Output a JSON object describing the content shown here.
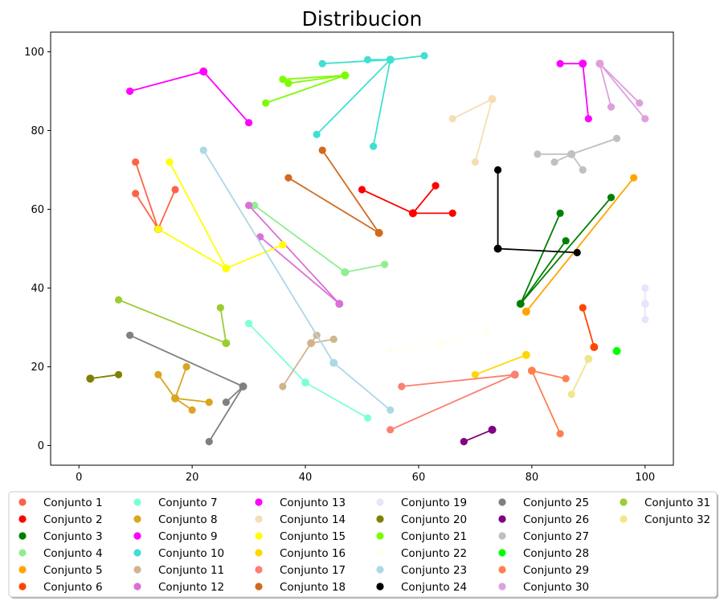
{
  "chart_data": {
    "type": "scatter",
    "title": "Distribucion",
    "xlabel": "",
    "ylabel": "",
    "xlim": [
      -5,
      105
    ],
    "ylim": [
      -5,
      105
    ],
    "xticks": [
      0,
      20,
      40,
      60,
      80,
      100
    ],
    "yticks": [
      0,
      20,
      40,
      60,
      80,
      100
    ],
    "grid": false,
    "legend_position": "bottom",
    "legend_columns": 6,
    "series": [
      {
        "name": "Conjunto 1",
        "color": "#ff6347",
        "center": [
          14,
          55
        ],
        "points": [
          [
            10,
            72
          ],
          [
            10,
            64
          ],
          [
            17,
            65
          ]
        ]
      },
      {
        "name": "Conjunto 2",
        "color": "#ff0000",
        "center": [
          59,
          59
        ],
        "points": [
          [
            50,
            65
          ],
          [
            63,
            66
          ],
          [
            66,
            59
          ]
        ]
      },
      {
        "name": "Conjunto 3",
        "color": "#008000",
        "center": [
          78,
          36
        ],
        "points": [
          [
            85,
            59
          ],
          [
            86,
            52
          ],
          [
            94,
            63
          ]
        ]
      },
      {
        "name": "Conjunto 4",
        "color": "#90ee90",
        "center": [
          47,
          44
        ],
        "points": [
          [
            31,
            61
          ],
          [
            54,
            46
          ]
        ]
      },
      {
        "name": "Conjunto 5",
        "color": "#ffa500",
        "center": [
          79,
          34
        ],
        "points": [
          [
            98,
            68
          ]
        ]
      },
      {
        "name": "Conjunto 6",
        "color": "#ff4500",
        "center": [
          91,
          25
        ],
        "points": [
          [
            89,
            35
          ]
        ]
      },
      {
        "name": "Conjunto 7",
        "color": "#7fffd4",
        "center": [
          40,
          16
        ],
        "points": [
          [
            30,
            31
          ],
          [
            51,
            7
          ]
        ]
      },
      {
        "name": "Conjunto 8",
        "color": "#daa520",
        "center": [
          17,
          12
        ],
        "points": [
          [
            14,
            18
          ],
          [
            19,
            20
          ],
          [
            20,
            9
          ],
          [
            23,
            11
          ]
        ]
      },
      {
        "name": "Conjunto 9",
        "color": "#ff00ff",
        "center": [
          22,
          95
        ],
        "points": [
          [
            9,
            90
          ],
          [
            30,
            82
          ]
        ]
      },
      {
        "name": "Conjunto 10",
        "color": "#40e0d0",
        "center": [
          55,
          98
        ],
        "points": [
          [
            42,
            79
          ],
          [
            43,
            97
          ],
          [
            51,
            98
          ],
          [
            52,
            76
          ],
          [
            61,
            99
          ]
        ]
      },
      {
        "name": "Conjunto 11",
        "color": "#d2b48c",
        "center": [
          41,
          26
        ],
        "points": [
          [
            36,
            15
          ],
          [
            42,
            28
          ],
          [
            45,
            27
          ]
        ]
      },
      {
        "name": "Conjunto 12",
        "color": "#da70d6",
        "center": [
          46,
          36
        ],
        "points": [
          [
            30,
            61
          ],
          [
            32,
            53
          ]
        ]
      },
      {
        "name": "Conjunto 13",
        "color": "#ff00ff",
        "center": [
          89,
          97
        ],
        "points": [
          [
            85,
            97
          ],
          [
            90,
            83
          ]
        ]
      },
      {
        "name": "Conjunto 14",
        "color": "#f5deb3",
        "center": [
          73,
          88
        ],
        "points": [
          [
            66,
            83
          ],
          [
            70,
            72
          ]
        ]
      },
      {
        "name": "Conjunto 15",
        "color": "#ffff00",
        "center": [
          26,
          45
        ],
        "points": [
          [
            14,
            55
          ],
          [
            16,
            72
          ],
          [
            36,
            51
          ]
        ]
      },
      {
        "name": "Conjunto 16",
        "color": "#ffd700",
        "center": [
          79,
          23
        ],
        "points": [
          [
            70,
            18
          ]
        ]
      },
      {
        "name": "Conjunto 17",
        "color": "#fa8072",
        "center": [
          77,
          18
        ],
        "points": [
          [
            55,
            4
          ],
          [
            57,
            15
          ]
        ]
      },
      {
        "name": "Conjunto 18",
        "color": "#d2691e",
        "center": [
          53,
          54
        ],
        "points": [
          [
            37,
            68
          ],
          [
            43,
            75
          ]
        ]
      },
      {
        "name": "Conjunto 19",
        "color": "#e6e6fa",
        "center": [
          100,
          36
        ],
        "points": [
          [
            100,
            40
          ],
          [
            100,
            32
          ]
        ]
      },
      {
        "name": "Conjunto 20",
        "color": "#808000",
        "center": [
          2,
          17
        ],
        "points": [
          [
            7,
            18
          ]
        ]
      },
      {
        "name": "Conjunto 21",
        "color": "#7cfc00",
        "center": [
          47,
          94
        ],
        "points": [
          [
            33,
            87
          ],
          [
            36,
            93
          ],
          [
            37,
            92
          ]
        ]
      },
      {
        "name": "Conjunto 22",
        "color": "#fffff0",
        "center": [
          64,
          26
        ],
        "points": [
          [
            55,
            24
          ],
          [
            72,
            29
          ]
        ]
      },
      {
        "name": "Conjunto 23",
        "color": "#add8e6",
        "center": [
          45,
          21
        ],
        "points": [
          [
            22,
            75
          ],
          [
            55,
            9
          ]
        ]
      },
      {
        "name": "Conjunto 24",
        "color": "#000000",
        "center": [
          74,
          50
        ],
        "points": [
          [
            74,
            70
          ],
          [
            88,
            49
          ]
        ]
      },
      {
        "name": "Conjunto 25",
        "color": "#808080",
        "center": [
          29,
          15
        ],
        "points": [
          [
            9,
            28
          ],
          [
            23,
            1
          ],
          [
            26,
            11
          ]
        ]
      },
      {
        "name": "Conjunto 26",
        "color": "#800080",
        "center": [
          73,
          4
        ],
        "points": [
          [
            68,
            1
          ]
        ]
      },
      {
        "name": "Conjunto 27",
        "color": "#c0c0c0",
        "center": [
          87,
          74
        ],
        "points": [
          [
            81,
            74
          ],
          [
            84,
            72
          ],
          [
            89,
            70
          ],
          [
            95,
            78
          ]
        ]
      },
      {
        "name": "Conjunto 28",
        "color": "#00ff00",
        "center": [
          95,
          24
        ],
        "points": []
      },
      {
        "name": "Conjunto 29",
        "color": "#ff7f50",
        "center": [
          80,
          19
        ],
        "points": [
          [
            85,
            3
          ],
          [
            86,
            17
          ]
        ]
      },
      {
        "name": "Conjunto 30",
        "color": "#dda0dd",
        "center": [
          92,
          97
        ],
        "points": [
          [
            94,
            86
          ],
          [
            99,
            87
          ],
          [
            100,
            83
          ]
        ]
      },
      {
        "name": "Conjunto 31",
        "color": "#9acd32",
        "center": [
          26,
          26
        ],
        "points": [
          [
            7,
            37
          ],
          [
            25,
            35
          ]
        ]
      },
      {
        "name": "Conjunto 32",
        "color": "#f0e68c",
        "center": [
          90,
          22
        ],
        "points": [
          [
            87,
            13
          ]
        ]
      }
    ]
  }
}
